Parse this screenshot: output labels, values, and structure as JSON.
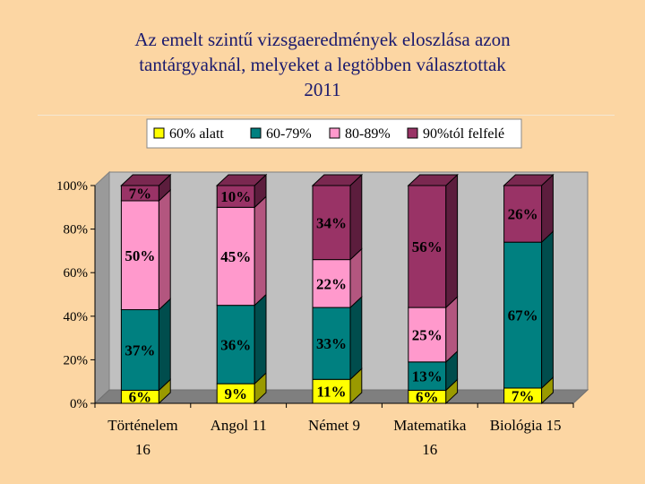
{
  "title": {
    "line1": "Az emelt szintű vizsgaeredmények eloszlása azon",
    "line2": "tantárgyaknál, melyeket a legtöbben választottak",
    "line3": "2011"
  },
  "colors": {
    "background": "#fcd6a3",
    "series": [
      "#ffff00",
      "#008080",
      "#ff99cc",
      "#993366"
    ],
    "series_dark": [
      "#9a9a00",
      "#004d4d",
      "#b3567f",
      "#5c1d3d"
    ],
    "series_side": [
      "#c9c900",
      "#006060",
      "#d97aa8",
      "#7a2850"
    ]
  },
  "chart_data": {
    "type": "bar",
    "stacked": true,
    "percent": true,
    "categories": [
      [
        "Történelem",
        "16"
      ],
      [
        "Angol 11",
        ""
      ],
      [
        "Német 9",
        ""
      ],
      [
        "Matematika",
        "16"
      ],
      [
        "Biológia 15",
        ""
      ]
    ],
    "series": [
      {
        "name": "60% alatt",
        "values": [
          6,
          9,
          11,
          6,
          7
        ],
        "labels": [
          "6%",
          "9%",
          "11%",
          "6%",
          "7%"
        ]
      },
      {
        "name": "60-79%",
        "values": [
          37,
          36,
          33,
          13,
          67
        ],
        "labels": [
          "37%",
          "36%",
          "33%",
          "13%",
          "67%"
        ]
      },
      {
        "name": "80-89%",
        "values": [
          50,
          45,
          22,
          25,
          0
        ],
        "labels": [
          "50%",
          "45%",
          "22%",
          "25%",
          ""
        ]
      },
      {
        "name": "90%tól felfelé",
        "values": [
          7,
          10,
          34,
          56,
          26
        ],
        "labels": [
          "7%",
          "10%",
          "34%",
          "56%",
          "26%"
        ]
      }
    ],
    "yticks": [
      "0%",
      "20%",
      "40%",
      "60%",
      "80%",
      "100%"
    ],
    "ylim": [
      0,
      100
    ],
    "legend_position": "top",
    "grid": false,
    "three_d": true
  }
}
